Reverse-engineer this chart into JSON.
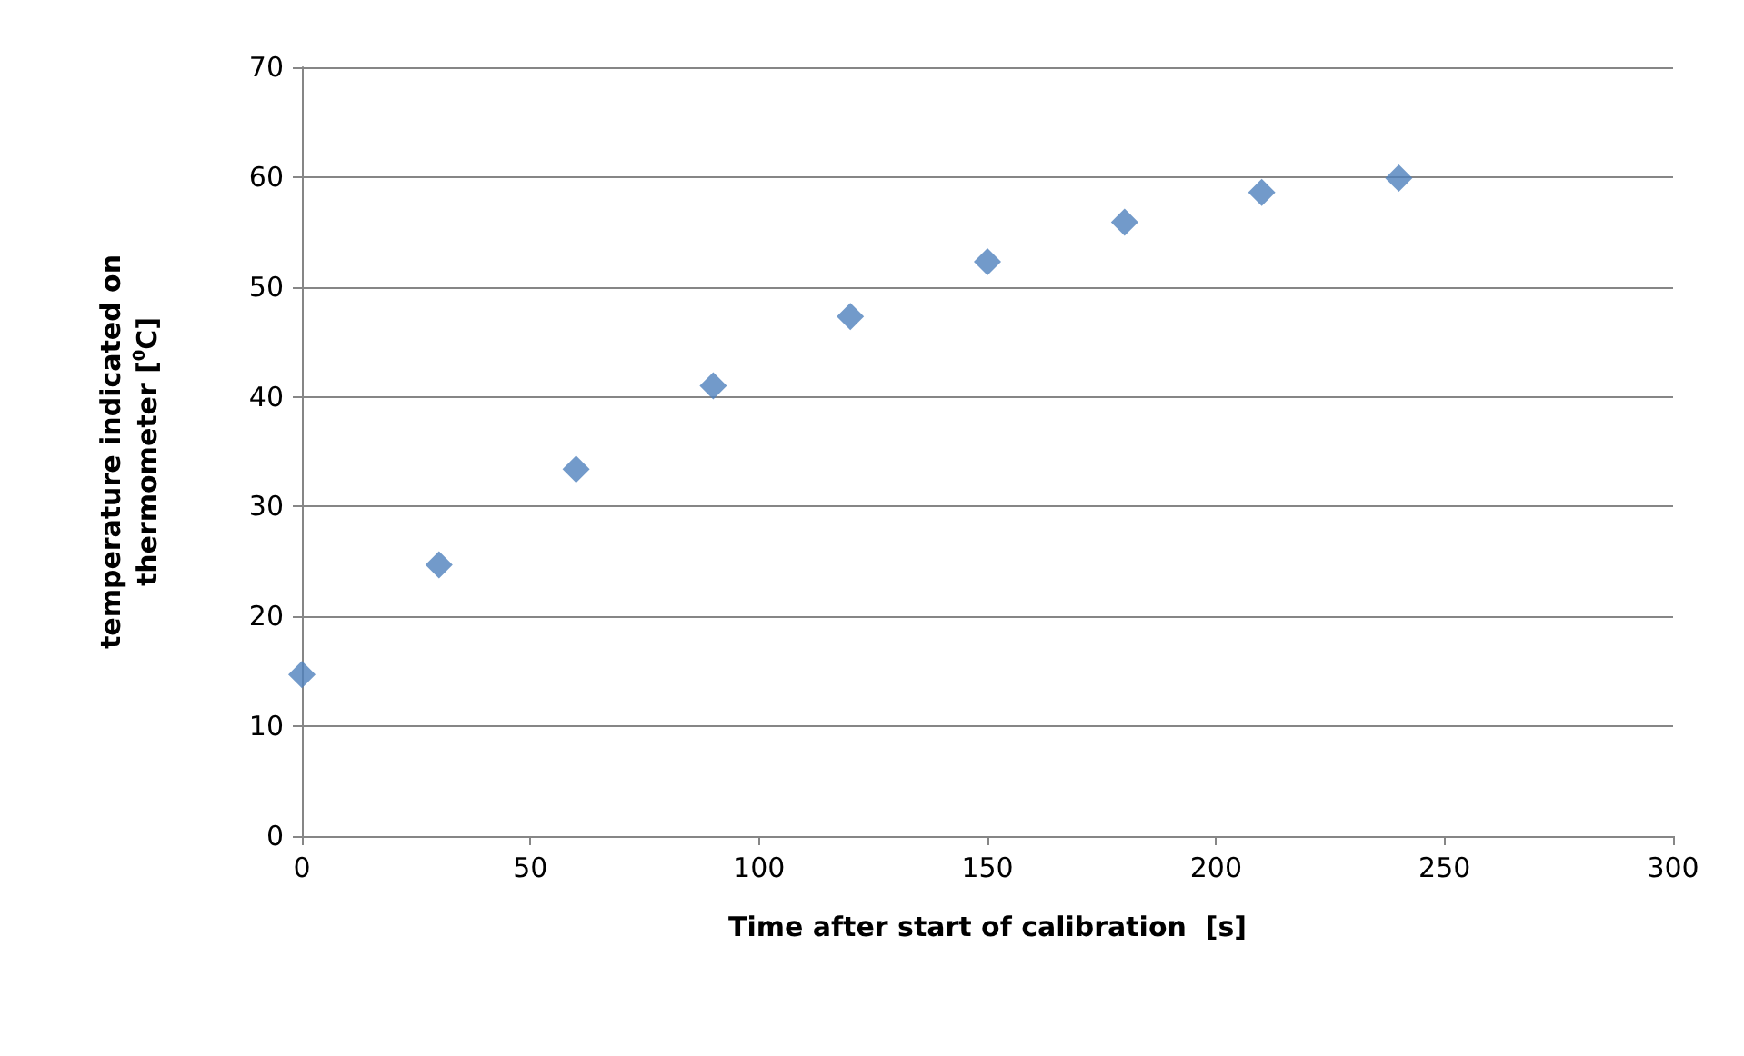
{
  "chart_data": {
    "type": "scatter",
    "xlabel": "Time after start of calibration  [s]",
    "ylabel": "temperature indicated on thermometer [$^{0}$C]",
    "x": [
      0,
      30,
      60,
      90,
      120,
      150,
      180,
      210,
      240
    ],
    "series": [
      {
        "color": "#4f81bd",
        "values": [
          14.7,
          24.7,
          33.4,
          41.0,
          47.3,
          52.3,
          55.9,
          58.6,
          59.9
        ]
      }
    ],
    "xlim": [
      0,
      300
    ],
    "xticks": [
      0,
      50,
      100,
      150,
      200,
      250,
      300
    ],
    "ylim": [
      0,
      70
    ],
    "yticks": [
      0,
      10,
      20,
      30,
      40,
      50,
      60,
      70
    ],
    "grid": "y",
    "marker": "diamond"
  }
}
